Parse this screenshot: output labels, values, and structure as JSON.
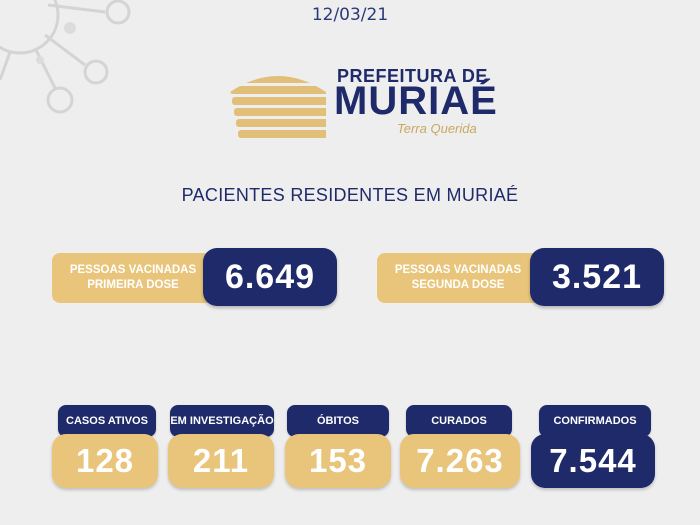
{
  "date": "12/03/21",
  "logo": {
    "line1": "PREFEITURA DE",
    "line2": "MURIAÉ",
    "slogan": "Terra Querida"
  },
  "section_title": "PACIENTES RESIDENTES EM MURIAÉ",
  "vaccination": [
    {
      "label_line1": "PESSOAS VACINADAS",
      "label_line2": "PRIMEIRA DOSE",
      "value": "6.649"
    },
    {
      "label_line1": "PESSOAS VACINADAS",
      "label_line2": "SEGUNDA DOSE",
      "value": "3.521"
    }
  ],
  "stats": [
    {
      "label": "CASOS ATIVOS",
      "value": "128"
    },
    {
      "label": "EM INVESTIGAÇÃO",
      "value": "211"
    },
    {
      "label": "ÓBITOS",
      "value": "153"
    },
    {
      "label": "CURADOS",
      "value": "7.263"
    },
    {
      "label": "CONFIRMADOS",
      "value": "7.544"
    }
  ],
  "colors": {
    "navy": "#1f2a6b",
    "gold": "#e8c57b",
    "background": "#eeeeee"
  },
  "icons": {
    "background_decoration": "virus-icon",
    "logo_mark": "striped-dome-logo"
  }
}
